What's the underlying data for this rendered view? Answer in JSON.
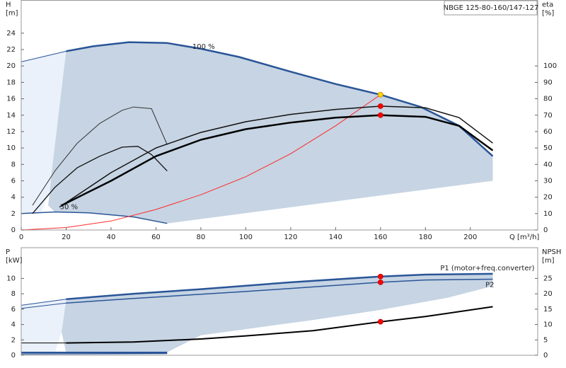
{
  "chart_data": [
    {
      "type": "line",
      "title": "NBGE 125-80-160/147-127",
      "x_label": "Q [m³/h]",
      "y_label": [
        "H",
        "[m]"
      ],
      "y2_label": [
        "eta",
        "[%]"
      ],
      "xlim": [
        0,
        230
      ],
      "xticks": [
        0,
        20,
        40,
        60,
        80,
        100,
        120,
        140,
        160,
        180,
        200
      ],
      "ylim": [
        0,
        28
      ],
      "yticks": [
        0,
        2,
        4,
        6,
        8,
        10,
        12,
        14,
        16,
        18,
        20,
        22,
        24
      ],
      "y2lim": [
        0,
        140
      ],
      "y2ticks": [
        0,
        10,
        20,
        30,
        40,
        50,
        60,
        70,
        80,
        90,
        100
      ],
      "series": [
        {
          "style": "fill",
          "color": "#eaf1fa",
          "x": [
            0,
            20,
            18,
            16,
            13,
            9,
            0
          ],
          "values": [
            20.5,
            21.8,
            15,
            9,
            5,
            2.2,
            2.0
          ]
        },
        {
          "style": "fill",
          "color": "#c6d4e3",
          "x": [
            20,
            32,
            48,
            65,
            80,
            97,
            120,
            140,
            160,
            178,
            195,
            210,
            210,
            65,
            50,
            30,
            15,
            12,
            14,
            17,
            20
          ],
          "values": [
            21.8,
            22.4,
            22.9,
            22.8,
            22.1,
            21.1,
            19.3,
            17.8,
            16.5,
            15.0,
            12.7,
            9.0,
            6.0,
            0.8,
            1.6,
            2.1,
            2.2,
            3,
            8,
            15,
            21.8
          ]
        },
        {
          "style": "line",
          "color": "#2a5597",
          "width": 1,
          "x": [
            0,
            20
          ],
          "values": [
            20.5,
            21.8
          ]
        },
        {
          "style": "line",
          "name": "100 %",
          "color": "#2a5597",
          "width": 2.5,
          "x": [
            20,
            32,
            48,
            65,
            80,
            97,
            120,
            140,
            160,
            178,
            195,
            210
          ],
          "values": [
            21.8,
            22.4,
            22.9,
            22.8,
            22.1,
            21.1,
            19.3,
            17.8,
            16.5,
            15.0,
            12.7,
            9.0
          ]
        },
        {
          "style": "line",
          "name": "30 %",
          "color": "#2a5597",
          "width": 1.5,
          "x": [
            0,
            15,
            30,
            50,
            65
          ],
          "values": [
            2.0,
            2.2,
            2.1,
            1.6,
            0.8
          ]
        },
        {
          "style": "line",
          "color": "#ff2a2a",
          "width": 1,
          "x": [
            0,
            20,
            40,
            60,
            80,
            100,
            120,
            140,
            160
          ],
          "values": [
            0,
            0.3,
            1.1,
            2.5,
            4.3,
            6.5,
            9.3,
            12.7,
            16.5
          ]
        },
        {
          "style": "line",
          "axis": "y2",
          "color": "#333333",
          "width": 1,
          "x": [
            5,
            15,
            25,
            35,
            45,
            50,
            58,
            65
          ],
          "values": [
            15,
            36,
            53,
            65,
            73,
            75,
            74,
            52
          ]
        },
        {
          "style": "line",
          "axis": "y2",
          "color": "#111111",
          "width": 1.3,
          "x": [
            5,
            15,
            25,
            35,
            45,
            52,
            58,
            65
          ],
          "values": [
            10,
            26,
            38,
            45,
            50.5,
            51,
            46,
            36
          ]
        },
        {
          "style": "line",
          "axis": "y2",
          "color": "#111111",
          "width": 1.5,
          "x": [
            17,
            40,
            60,
            80,
            100,
            120,
            140,
            160,
            180,
            195,
            210
          ],
          "values": [
            14,
            35,
            50,
            59.5,
            66,
            70.5,
            73.5,
            75.5,
            74.5,
            68.5,
            53
          ]
        },
        {
          "style": "line",
          "axis": "y2",
          "color": "#000000",
          "width": 2.5,
          "x": [
            18,
            40,
            60,
            80,
            100,
            120,
            140,
            160,
            180,
            195,
            210
          ],
          "values": [
            15,
            30,
            45,
            55,
            61.5,
            65.5,
            68.5,
            70,
            69,
            63.5,
            48.5
          ]
        },
        {
          "style": "marker",
          "color": "#ffd700",
          "x": [
            160
          ],
          "values": [
            16.5
          ]
        },
        {
          "style": "marker",
          "axis": "y2",
          "color": "#ff0000",
          "x": [
            160,
            160
          ],
          "values": [
            75.5,
            70
          ]
        }
      ]
    },
    {
      "type": "line",
      "y_label": [
        "P",
        "[kW]"
      ],
      "y2_label": [
        "NPSH",
        "[m]"
      ],
      "xlim": [
        0,
        230
      ],
      "ylim": [
        0,
        14
      ],
      "yticks": [
        0,
        2,
        4,
        6,
        8,
        10
      ],
      "y2lim": [
        0,
        35
      ],
      "y2ticks": [
        0,
        5,
        10,
        15,
        20,
        25
      ],
      "series": [
        {
          "style": "fill",
          "color": "#eaf1fa",
          "x": [
            0,
            20,
            18,
            15,
            0
          ],
          "values": [
            6.5,
            7.3,
            3,
            0.3,
            0.3
          ]
        },
        {
          "style": "fill",
          "color": "#c6d4e3",
          "x": [
            20,
            50,
            80,
            120,
            160,
            180,
            210,
            210,
            190,
            160,
            130,
            100,
            80,
            65,
            20,
            18,
            20
          ],
          "values": [
            7.3,
            8.0,
            8.6,
            9.5,
            10.25,
            10.5,
            10.6,
            9.0,
            7.5,
            5.9,
            4.6,
            3.4,
            2.6,
            0.4,
            0.3,
            3,
            7.3
          ]
        },
        {
          "style": "line",
          "color": "#2a5597",
          "width": 1,
          "x": [
            0,
            20
          ],
          "values": [
            6.5,
            7.3
          ]
        },
        {
          "style": "line",
          "name": "P1 (motor+freq.converter)",
          "color": "#2a5597",
          "width": 2.5,
          "x": [
            20,
            50,
            80,
            120,
            160,
            180,
            210
          ],
          "values": [
            7.3,
            8.0,
            8.6,
            9.5,
            10.25,
            10.5,
            10.6
          ]
        },
        {
          "style": "line",
          "color": "#2a5597",
          "width": 1,
          "x": [
            0,
            20
          ],
          "values": [
            6.1,
            6.8
          ]
        },
        {
          "style": "line",
          "name": "P2",
          "color": "#2a5597",
          "width": 1.5,
          "x": [
            20,
            50,
            100,
            160,
            180,
            210
          ],
          "values": [
            6.8,
            7.4,
            8.3,
            9.5,
            9.8,
            9.9
          ]
        },
        {
          "style": "line",
          "color": "#2a5597",
          "width": 2.5,
          "x": [
            0,
            65
          ],
          "values": [
            0.35,
            0.35
          ]
        },
        {
          "style": "line",
          "color": "#2a5597",
          "width": 1,
          "x": [
            0,
            65
          ],
          "values": [
            0.15,
            0.2
          ]
        },
        {
          "style": "line",
          "axis": "y2",
          "color": "#000000",
          "width": 1,
          "x": [
            0,
            20
          ],
          "values": [
            4.0,
            4.0
          ]
        },
        {
          "style": "line",
          "axis": "y2",
          "color": "#000000",
          "width": 2,
          "x": [
            20,
            50,
            80,
            100,
            130,
            160,
            180,
            210
          ],
          "values": [
            4.0,
            4.3,
            5.3,
            6.3,
            8.0,
            10.9,
            12.6,
            15.8
          ]
        },
        {
          "style": "marker",
          "color": "#ff0000",
          "x": [
            160,
            160
          ],
          "values": [
            10.25,
            9.5
          ]
        },
        {
          "style": "marker",
          "axis": "y2",
          "color": "#ff0000",
          "x": [
            160
          ],
          "values": [
            10.9
          ]
        }
      ]
    }
  ]
}
